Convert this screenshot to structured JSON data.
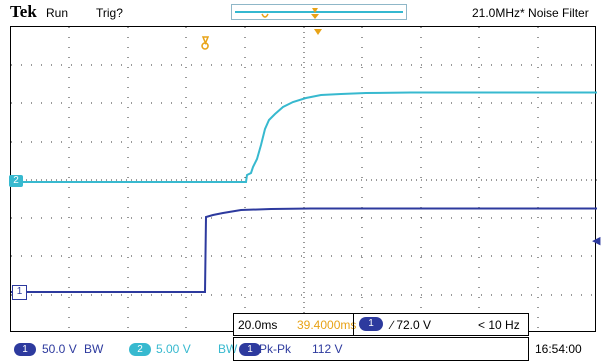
{
  "header": {
    "brand": "Tek",
    "run_state": "Run",
    "trigger_state": "Trig?",
    "filter_text": "21.0MHz* Noise Filter"
  },
  "channels": {
    "ch2_marker": "2",
    "ch1_marker": "1"
  },
  "timebase": {
    "scale": "20.0ms",
    "position": "39.4000ms",
    "trigger_source": "1",
    "trigger_slope_level": "∕ 72.0 V",
    "trigger_freq": "< 10 Hz"
  },
  "footer": {
    "ch1_badge": "1",
    "ch1_scale": "50.0 V",
    "ch1_bw": "BW",
    "ch2_badge": "2",
    "ch2_scale": "5.00 V",
    "ch2_bw": "BW",
    "meas_badge": "1",
    "meas_type": "Pk-Pk",
    "meas_value": "112 V",
    "clock": "16:54:00"
  },
  "colors": {
    "ch1": "#2d3a9e",
    "ch2": "#37b9cf",
    "trigger_position": "#e8a317"
  }
}
